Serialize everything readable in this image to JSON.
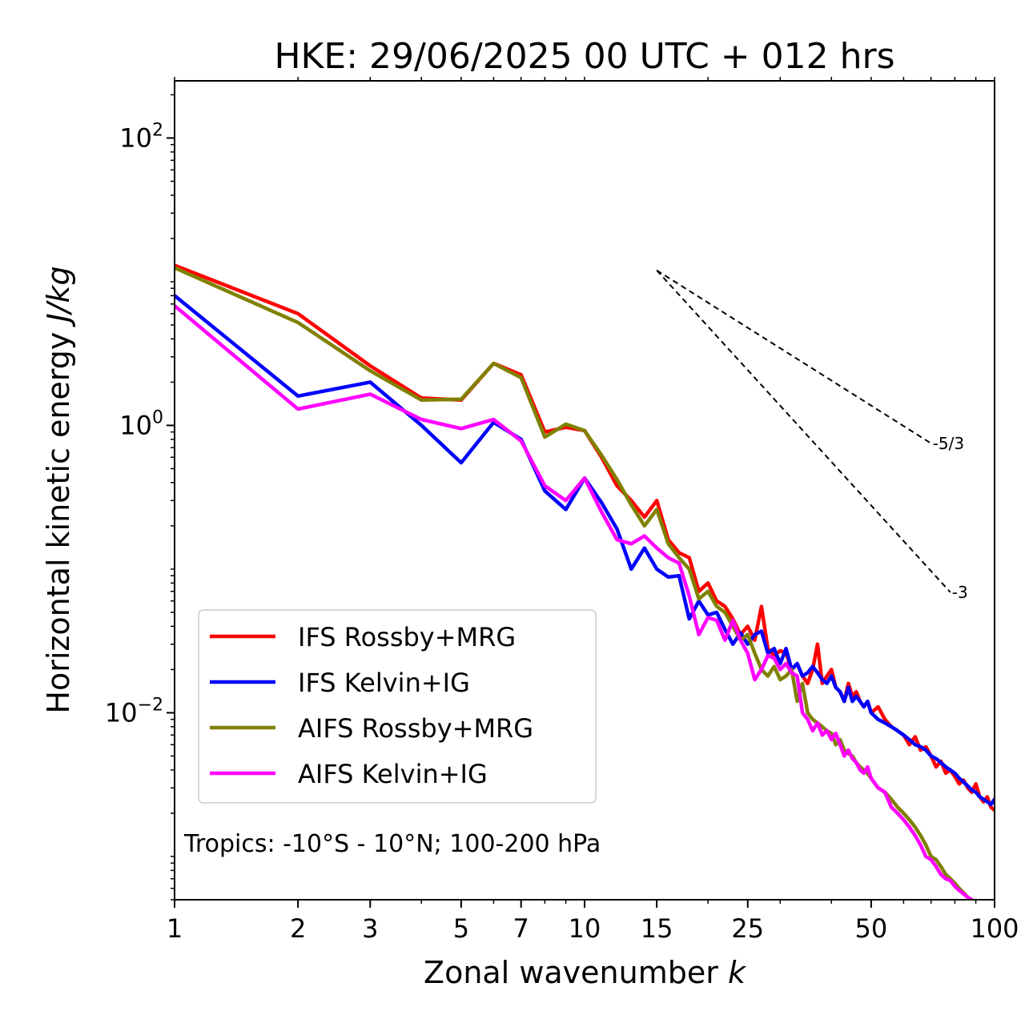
{
  "chart_data": {
    "type": "line",
    "title": "HKE: 29/06/2025 00 UTC + 012 hrs",
    "xlabel": "Zonal wavenumber",
    "xlabel_var": "k",
    "ylabel": "Horizontal kinetic energy",
    "ylabel_unit": "J/kg",
    "xscale": "log",
    "yscale": "log",
    "xlim": [
      1,
      100
    ],
    "ylim": [
      0.0005,
      250
    ],
    "xticks": [
      1,
      2,
      3,
      5,
      7,
      10,
      15,
      25,
      50,
      100
    ],
    "xtick_labels": [
      "1",
      "2",
      "3",
      "5",
      "7",
      "10",
      "15",
      "25",
      "50",
      "100"
    ],
    "yticks": [
      {
        "value": 100,
        "base": "10",
        "exp": "2"
      },
      {
        "value": 1,
        "base": "10",
        "exp": "0"
      },
      {
        "value": 0.01,
        "base": "10",
        "exp": "−2"
      }
    ],
    "annotation": "Tropics: -10°S - 10°N; 100-200 hPa",
    "legend_position": "lower-left",
    "reference_slopes": [
      {
        "label": "-5/3",
        "x": [
          15,
          70
        ],
        "y": [
          12.0,
          0.75
        ]
      },
      {
        "label": "-3",
        "x": [
          15,
          78
        ],
        "y": [
          12.0,
          0.069
        ]
      }
    ],
    "series": [
      {
        "name": "IFS Rossby+MRG",
        "color": "#ff0000",
        "x": [
          1,
          2,
          3,
          4,
          5,
          6,
          7,
          8,
          9,
          10,
          11,
          12,
          13,
          14,
          15,
          16,
          17,
          18,
          19,
          20,
          21,
          22,
          23,
          24,
          25,
          26,
          27,
          28,
          29,
          30,
          31,
          32,
          33,
          34,
          35,
          36,
          37,
          38,
          39,
          40,
          41,
          42,
          43,
          44,
          45,
          46,
          47,
          48,
          49,
          50,
          52,
          54,
          56,
          58,
          60,
          62,
          64,
          66,
          68,
          70,
          72,
          74,
          76,
          78,
          80,
          82,
          84,
          86,
          88,
          90,
          92,
          94,
          96,
          98,
          100
        ],
        "y": [
          13,
          6,
          2.6,
          1.55,
          1.5,
          2.7,
          2.25,
          0.9,
          0.97,
          0.92,
          0.6,
          0.38,
          0.3,
          0.23,
          0.3,
          0.16,
          0.13,
          0.12,
          0.07,
          0.08,
          0.06,
          0.055,
          0.045,
          0.035,
          0.04,
          0.032,
          0.055,
          0.028,
          0.025,
          0.027,
          0.026,
          0.02,
          0.022,
          0.018,
          0.016,
          0.02,
          0.03,
          0.016,
          0.018,
          0.02,
          0.015,
          0.014,
          0.012,
          0.016,
          0.013,
          0.014,
          0.012,
          0.011,
          0.012,
          0.01,
          0.011,
          0.009,
          0.008,
          0.0075,
          0.007,
          0.006,
          0.0068,
          0.0055,
          0.0058,
          0.005,
          0.0042,
          0.0046,
          0.0038,
          0.004,
          0.0036,
          0.0032,
          0.0034,
          0.003,
          0.0028,
          0.0032,
          0.0026,
          0.0024,
          0.0026,
          0.0022,
          0.0021
        ]
      },
      {
        "name": "IFS Kelvin+IG",
        "color": "#0000ff",
        "x": [
          1,
          2,
          3,
          4,
          5,
          6,
          7,
          8,
          9,
          10,
          11,
          12,
          13,
          14,
          15,
          16,
          17,
          18,
          19,
          20,
          21,
          22,
          23,
          24,
          25,
          26,
          27,
          28,
          29,
          30,
          31,
          32,
          33,
          34,
          35,
          36,
          37,
          38,
          39,
          40,
          41,
          42,
          43,
          44,
          45,
          46,
          47,
          48,
          49,
          50,
          52,
          54,
          56,
          58,
          60,
          62,
          64,
          66,
          68,
          70,
          72,
          74,
          76,
          78,
          80,
          82,
          84,
          86,
          88,
          90,
          92,
          94,
          96,
          98,
          100
        ],
        "y": [
          8.0,
          1.6,
          2.0,
          1.0,
          0.55,
          1.05,
          0.8,
          0.35,
          0.26,
          0.43,
          0.29,
          0.19,
          0.1,
          0.14,
          0.1,
          0.088,
          0.09,
          0.045,
          0.06,
          0.048,
          0.05,
          0.038,
          0.03,
          0.036,
          0.03,
          0.035,
          0.037,
          0.026,
          0.028,
          0.022,
          0.028,
          0.02,
          0.022,
          0.018,
          0.019,
          0.021,
          0.019,
          0.017,
          0.016,
          0.018,
          0.015,
          0.014,
          0.012,
          0.015,
          0.012,
          0.013,
          0.012,
          0.011,
          0.012,
          0.01,
          0.009,
          0.0085,
          0.008,
          0.0075,
          0.007,
          0.0065,
          0.006,
          0.0058,
          0.0055,
          0.005,
          0.0048,
          0.0045,
          0.0042,
          0.004,
          0.0038,
          0.0035,
          0.0033,
          0.0031,
          0.0029,
          0.0028,
          0.0026,
          0.0025,
          0.0024,
          0.0023,
          0.0025
        ]
      },
      {
        "name": "AIFS Rossby+MRG",
        "color": "#808000",
        "x": [
          1,
          2,
          3,
          4,
          5,
          6,
          7,
          8,
          9,
          10,
          11,
          12,
          13,
          14,
          15,
          16,
          17,
          18,
          19,
          20,
          21,
          22,
          23,
          24,
          25,
          26,
          27,
          28,
          29,
          30,
          31,
          32,
          33,
          34,
          35,
          36,
          37,
          38,
          39,
          40,
          41,
          42,
          43,
          44,
          45,
          46,
          47,
          48,
          49,
          50,
          52,
          54,
          56,
          58,
          60,
          62,
          64,
          66,
          68,
          70,
          72,
          74,
          76,
          78,
          80,
          82,
          84,
          86,
          88
        ],
        "y": [
          12.5,
          5.2,
          2.4,
          1.5,
          1.52,
          2.7,
          2.15,
          0.83,
          1.02,
          0.92,
          0.62,
          0.42,
          0.28,
          0.2,
          0.26,
          0.15,
          0.12,
          0.1,
          0.062,
          0.07,
          0.055,
          0.05,
          0.04,
          0.032,
          0.035,
          0.026,
          0.02,
          0.018,
          0.021,
          0.017,
          0.018,
          0.02,
          0.012,
          0.016,
          0.01,
          0.009,
          0.0085,
          0.008,
          0.0075,
          0.0072,
          0.006,
          0.0065,
          0.0055,
          0.0052,
          0.005,
          0.0045,
          0.0042,
          0.004,
          0.0038,
          0.0035,
          0.003,
          0.0028,
          0.0025,
          0.0022,
          0.002,
          0.0018,
          0.0016,
          0.0014,
          0.0012,
          0.001,
          0.00095,
          0.00085,
          0.00075,
          0.0007,
          0.00065,
          0.0006,
          0.00056,
          0.00052,
          0.0005
        ]
      },
      {
        "name": "AIFS Kelvin+IG",
        "color": "#ff00ff",
        "x": [
          1,
          2,
          3,
          4,
          5,
          6,
          7,
          8,
          9,
          10,
          11,
          12,
          13,
          14,
          15,
          16,
          17,
          18,
          19,
          20,
          21,
          22,
          23,
          24,
          25,
          26,
          27,
          28,
          29,
          30,
          31,
          32,
          33,
          34,
          35,
          36,
          37,
          38,
          39,
          40,
          41,
          42,
          43,
          44,
          45,
          46,
          47,
          48,
          49,
          50,
          52,
          54,
          56,
          58,
          60,
          62,
          64,
          66,
          68,
          70,
          72,
          74,
          76,
          78,
          80,
          82,
          84,
          86,
          88
        ],
        "y": [
          6.8,
          1.3,
          1.65,
          1.1,
          0.95,
          1.1,
          0.78,
          0.38,
          0.3,
          0.43,
          0.25,
          0.16,
          0.15,
          0.17,
          0.14,
          0.12,
          0.11,
          0.065,
          0.035,
          0.046,
          0.044,
          0.032,
          0.044,
          0.032,
          0.026,
          0.017,
          0.02,
          0.025,
          0.024,
          0.02,
          0.022,
          0.019,
          0.018,
          0.01,
          0.009,
          0.0075,
          0.0085,
          0.007,
          0.0075,
          0.0065,
          0.0072,
          0.006,
          0.005,
          0.0055,
          0.0048,
          0.0045,
          0.004,
          0.0038,
          0.0042,
          0.0035,
          0.003,
          0.0028,
          0.0022,
          0.002,
          0.0018,
          0.0016,
          0.0014,
          0.0012,
          0.001,
          0.00095,
          0.00085,
          0.00075,
          0.0007,
          0.00068,
          0.00062,
          0.00058,
          0.00055,
          0.00052,
          0.0005
        ]
      }
    ]
  }
}
